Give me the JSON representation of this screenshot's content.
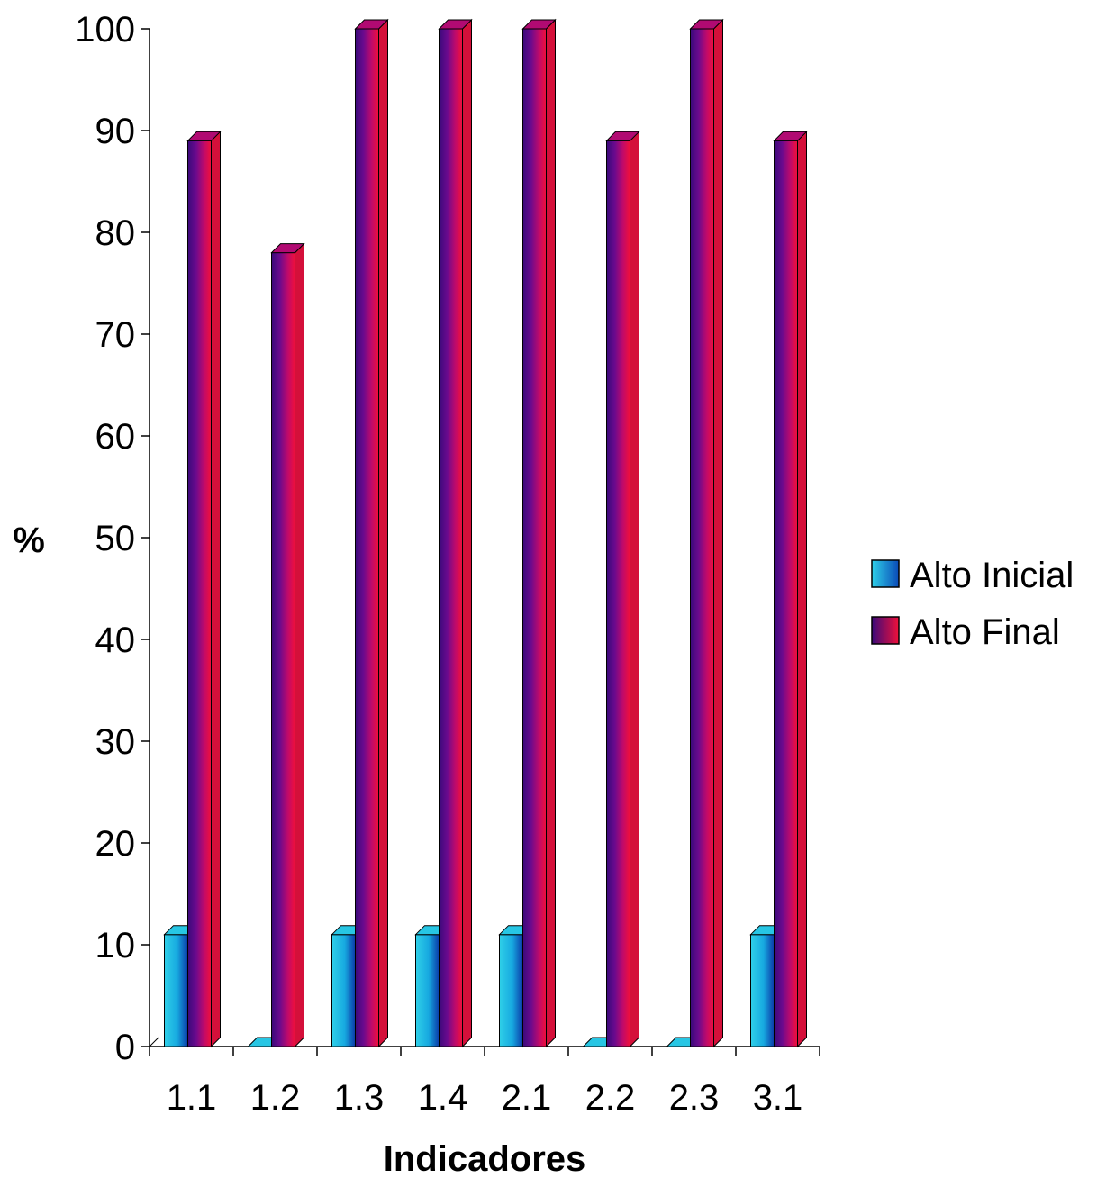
{
  "chart_data": {
    "type": "bar",
    "title": "",
    "xlabel": "Indicadores",
    "ylabel": "%",
    "categories": [
      "1.1",
      "1.2",
      "1.3",
      "1.4",
      "2.1",
      "2.2",
      "2.3",
      "3.1"
    ],
    "series": [
      {
        "name": "Alto Inicial",
        "values": [
          11,
          0,
          11,
          11,
          11,
          0,
          0,
          11
        ],
        "color": "#1ab8e6"
      },
      {
        "name": "Alto Final",
        "values": [
          89,
          78,
          100,
          100,
          100,
          89,
          100,
          89
        ],
        "color": "#8b0a8b"
      }
    ],
    "ylim": [
      0,
      100
    ],
    "yticks": [
      0,
      10,
      20,
      30,
      40,
      50,
      60,
      70,
      80,
      90,
      100
    ],
    "grid": false,
    "legend_position": "right"
  }
}
